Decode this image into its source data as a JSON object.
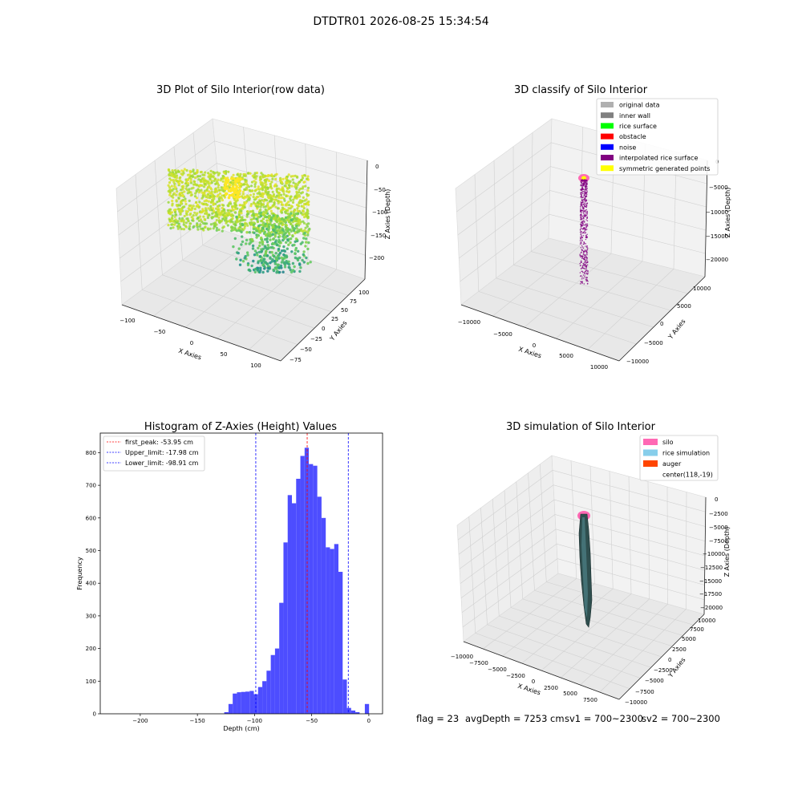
{
  "figure": {
    "suptitle": "DTDTR01 2026-08-25 15:34:54"
  },
  "chart_data": [
    {
      "type": "scatter",
      "title": "3D Plot of Silo Interior(row data)",
      "xlabel": "X Axies",
      "ylabel": "Y Axies",
      "zlabel": "Z Axies (Depth)",
      "x_ticks": [
        "−100",
        "−50",
        "0",
        "50",
        "100"
      ],
      "y_ticks": [
        "−75",
        "−50",
        "−25",
        "0",
        "25",
        "50",
        "75",
        "100"
      ],
      "z_ticks": [
        "0",
        "−50",
        "−100",
        "−150",
        "−200"
      ],
      "xlim": [
        -110,
        110
      ],
      "ylim": [
        -85,
        110
      ],
      "zlim": [
        -220,
        5
      ],
      "colormap": "viridis",
      "grid": true
    },
    {
      "type": "scatter",
      "title": "3D classify of Silo Interior",
      "zlabel": "Z Axies (Depth)",
      "xlabel": "X Axies",
      "ylabel": "Y Axies",
      "x_ticks": [
        "−10000",
        "−5000",
        "0",
        "5000",
        "10000"
      ],
      "y_ticks": [
        "−10000",
        "−5000",
        "0",
        "5000",
        "10000"
      ],
      "z_ticks": [
        "0",
        "−5000",
        "−10000",
        "−15000",
        "−20000"
      ],
      "legend": {
        "position": "upper-right",
        "items": [
          {
            "label": "original data",
            "color": "#b0b0b0"
          },
          {
            "label": "inner wall",
            "color": "#808080"
          },
          {
            "label": "rice surface",
            "color": "#00ff00"
          },
          {
            "label": "obstacle",
            "color": "#ff0000"
          },
          {
            "label": "noise",
            "color": "#0000ff"
          },
          {
            "label": "interpolated rice surface",
            "color": "#800080"
          },
          {
            "label": "symmetric generated points",
            "color": "#ffff00"
          }
        ]
      },
      "grid": true
    },
    {
      "type": "histogram",
      "title": "Histogram of Z-Axies (Height) Values",
      "xlabel": "Depth (cm)",
      "ylabel": "Frequency",
      "xlim": [
        -235,
        12
      ],
      "ylim": [
        0,
        860
      ],
      "x_ticks": [
        -200,
        -150,
        -100,
        -50,
        0
      ],
      "y_ticks": [
        0,
        100,
        200,
        300,
        400,
        500,
        600,
        700,
        800
      ],
      "bar_color": "#4d4dff",
      "bins": [
        {
          "x0": -126.5,
          "x1": -122.8,
          "value": 5
        },
        {
          "x0": -122.8,
          "x1": -119.1,
          "value": 30
        },
        {
          "x0": -119.1,
          "x1": -115.4,
          "value": 62
        },
        {
          "x0": -115.4,
          "x1": -111.7,
          "value": 66
        },
        {
          "x0": -111.7,
          "x1": -108.0,
          "value": 67
        },
        {
          "x0": -108.0,
          "x1": -104.3,
          "value": 68
        },
        {
          "x0": -104.3,
          "x1": -100.6,
          "value": 70
        },
        {
          "x0": -100.6,
          "x1": -96.9,
          "value": 60
        },
        {
          "x0": -96.9,
          "x1": -93.2,
          "value": 82
        },
        {
          "x0": -93.2,
          "x1": -89.5,
          "value": 100
        },
        {
          "x0": -89.5,
          "x1": -85.8,
          "value": 132
        },
        {
          "x0": -85.8,
          "x1": -82.1,
          "value": 180
        },
        {
          "x0": -82.1,
          "x1": -78.4,
          "value": 200
        },
        {
          "x0": -78.4,
          "x1": -74.7,
          "value": 340
        },
        {
          "x0": -74.7,
          "x1": -71.0,
          "value": 525
        },
        {
          "x0": -71.0,
          "x1": -67.3,
          "value": 670
        },
        {
          "x0": -67.3,
          "x1": -63.6,
          "value": 645
        },
        {
          "x0": -63.6,
          "x1": -59.9,
          "value": 720
        },
        {
          "x0": -59.9,
          "x1": -56.2,
          "value": 790
        },
        {
          "x0": -56.2,
          "x1": -52.5,
          "value": 815
        },
        {
          "x0": -52.5,
          "x1": -48.8,
          "value": 765
        },
        {
          "x0": -48.8,
          "x1": -45.1,
          "value": 760
        },
        {
          "x0": -45.1,
          "x1": -41.4,
          "value": 665
        },
        {
          "x0": -41.4,
          "x1": -37.7,
          "value": 600
        },
        {
          "x0": -37.7,
          "x1": -34.0,
          "value": 510
        },
        {
          "x0": -34.0,
          "x1": -30.3,
          "value": 505
        },
        {
          "x0": -30.3,
          "x1": -26.6,
          "value": 520
        },
        {
          "x0": -26.6,
          "x1": -22.9,
          "value": 435
        },
        {
          "x0": -22.9,
          "x1": -19.2,
          "value": 105
        },
        {
          "x0": -19.2,
          "x1": -15.5,
          "value": 18
        },
        {
          "x0": -15.5,
          "x1": -11.8,
          "value": 10
        },
        {
          "x0": -11.8,
          "x1": -8.1,
          "value": 5
        },
        {
          "x0": -3.5,
          "x1": 0.2,
          "value": 30
        }
      ],
      "vlines": [
        {
          "x": -53.95,
          "color": "#ff0000",
          "label": "first_peak: -53.95 cm"
        },
        {
          "x": -17.98,
          "color": "#0000ff",
          "label": "Upper_limit: -17.98 cm"
        },
        {
          "x": -98.91,
          "color": "#0000ff",
          "label": "Lower_limit: -98.91 cm"
        }
      ],
      "legend_position": "upper-left"
    },
    {
      "type": "surface",
      "title": "3D simulation of Silo Interior",
      "xlabel": "X Axies",
      "ylabel": "Y Axies",
      "zlabel": "Z Axies (Depth)",
      "x_ticks": [
        "−10000",
        "−7500",
        "−5000",
        "−2500",
        "0",
        "2500",
        "5000",
        "7500"
      ],
      "y_ticks": [
        "−10000",
        "−7500",
        "−5000",
        "−2500",
        "0",
        "2500",
        "5000",
        "7500",
        "10000"
      ],
      "z_ticks": [
        "0",
        "−2500",
        "−5000",
        "−7500",
        "−10000",
        "−12500",
        "−15000",
        "−17500",
        "−20000"
      ],
      "legend": {
        "position": "upper-right",
        "items": [
          {
            "label": "silo",
            "color": "#ff69b4"
          },
          {
            "label": "rice simulation",
            "color": "#87ceeb"
          },
          {
            "label": "auger",
            "color": "#ff4500"
          },
          {
            "label": "center(118,-19)",
            "color": ""
          }
        ]
      },
      "grid": true
    }
  ],
  "status": {
    "flag": "flag = 23",
    "avgdepth": "avgDepth = 7253 cm",
    "sv1": "sv1 = 700~2300",
    "sv2": "sv2 = 700~2300"
  }
}
